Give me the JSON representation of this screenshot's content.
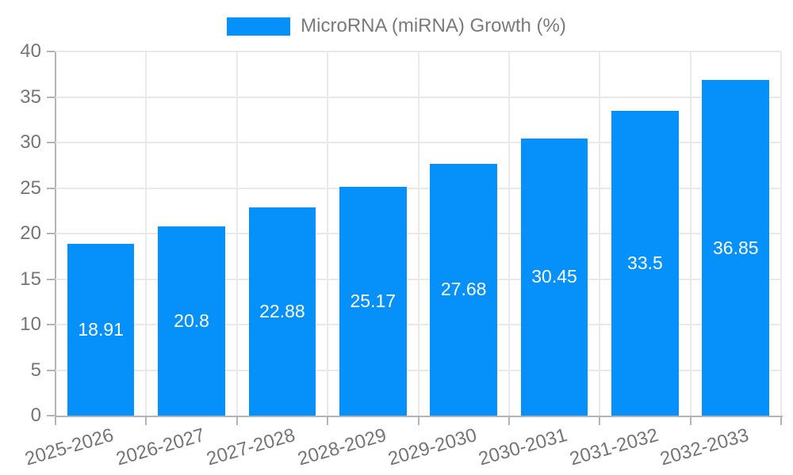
{
  "chart_data": {
    "type": "bar",
    "legend": "MicroRNA (miRNA) Growth (%)",
    "legend_position": "top-center",
    "categories": [
      "2025-2026",
      "2026-2027",
      "2027-2028",
      "2028-2029",
      "2029-2030",
      "2030-2031",
      "2031-2032",
      "2032-2033"
    ],
    "values": [
      18.91,
      20.8,
      22.88,
      25.17,
      27.68,
      30.45,
      33.5,
      36.85
    ],
    "value_labels": [
      "18.91",
      "20.8",
      "22.88",
      "25.17",
      "27.68",
      "30.45",
      "33.5",
      "36.85"
    ],
    "xlabel": "",
    "ylabel": "",
    "ylim": [
      0,
      40
    ],
    "yticks": [
      0,
      5,
      10,
      15,
      20,
      25,
      30,
      35,
      40
    ],
    "grid": true,
    "colors": {
      "bar": "#0690fa",
      "bar_label": "#ffffff",
      "grid": "#e9e9e9",
      "axis": "#b4b4b4",
      "tick_text": "#757575",
      "legend_text": "#7a7a7a",
      "background": "#ffffff"
    }
  }
}
